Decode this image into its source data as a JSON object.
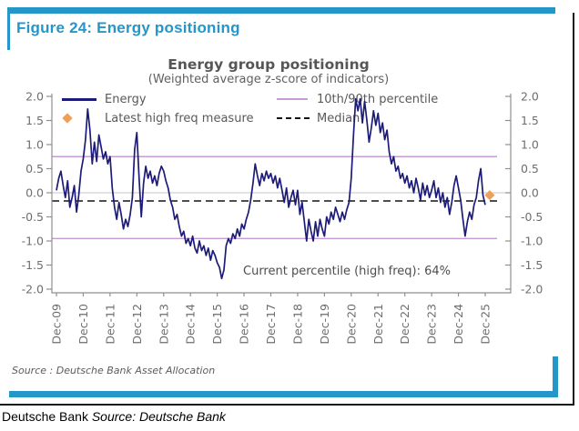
{
  "figure": {
    "label": "Figure 24: Energy positioning",
    "source_note": "Source : Deutsche Bank Asset Allocation"
  },
  "footer": {
    "brand": "Deutsche Bank",
    "source": "Source: Deutsche Bank"
  },
  "colors": {
    "accent_blue": "#2496c8",
    "frame_black": "#1a1a1a",
    "energy_line": "#1d1b78",
    "percentile_line": "#c79bd6",
    "median_line": "#141414",
    "marker_orange": "#eda05a",
    "title_gray": "#565656",
    "axis_gray": "#6e6e6e"
  },
  "chart_data": {
    "type": "line",
    "title": "Energy group positioning",
    "subtitle": "(Weighted average z-score of indicators)",
    "annotation": "Current percentile (high freq): 64%",
    "legend": [
      {
        "label": "Energy",
        "swatch": "line",
        "color": "#1d1b78"
      },
      {
        "label": "10th/90th percentile",
        "swatch": "line",
        "color": "#c79bd6"
      },
      {
        "label": "Latest high freq measure",
        "swatch": "diamond",
        "color": "#eda05a"
      },
      {
        "label": "Median",
        "swatch": "dashed",
        "color": "#141414"
      }
    ],
    "legend_position": "top",
    "grid": "zero-line-only",
    "ylim": [
      -2.0,
      2.0
    ],
    "y_tick_labels": [
      "2.0",
      "1.5",
      "1.0",
      "0.5",
      "0.0",
      "-0.5",
      "-1.0",
      "-1.5",
      "-2.0"
    ],
    "x_tick_labels": [
      "Dec-09",
      "Dec-10",
      "Dec-11",
      "Dec-12",
      "Dec-13",
      "Dec-14",
      "Dec-15",
      "Dec-16",
      "Dec-17",
      "Dec-18",
      "Dec-19",
      "Dec-20",
      "Dec-21",
      "Dec-22",
      "Dec-23",
      "Dec-24",
      "Dec-25"
    ],
    "reference_lines": {
      "upper_percentile": 0.75,
      "lower_percentile": -0.95,
      "median": -0.17
    },
    "latest_high_freq_marker": {
      "month": 194,
      "value": -0.05
    },
    "series": [
      {
        "name": "Energy",
        "x_unit": "months_from_Dec-09",
        "values": [
          0.05,
          0.3,
          0.45,
          0.15,
          -0.1,
          0.25,
          -0.3,
          -0.1,
          0.15,
          -0.4,
          -0.05,
          0.45,
          0.7,
          1.1,
          1.74,
          1.3,
          0.6,
          1.05,
          0.65,
          1.2,
          0.95,
          0.7,
          0.85,
          0.6,
          0.75,
          0.1,
          -0.3,
          -0.55,
          -0.2,
          -0.45,
          -0.75,
          -0.55,
          -0.7,
          -0.45,
          -0.1,
          0.9,
          1.25,
          0.3,
          -0.5,
          0.2,
          0.55,
          0.3,
          0.45,
          0.2,
          0.35,
          0.15,
          0.4,
          0.55,
          0.45,
          0.25,
          0.1,
          -0.15,
          -0.3,
          -0.55,
          -0.45,
          -0.7,
          -0.9,
          -0.8,
          -1.05,
          -0.95,
          -1.1,
          -0.9,
          -1.15,
          -1.25,
          -1.0,
          -1.2,
          -1.1,
          -1.3,
          -1.15,
          -1.4,
          -1.2,
          -1.3,
          -1.45,
          -1.55,
          -1.78,
          -1.6,
          -1.1,
          -0.95,
          -1.05,
          -0.85,
          -0.95,
          -0.75,
          -0.9,
          -0.65,
          -0.75,
          -0.55,
          -0.4,
          -0.15,
          0.2,
          0.6,
          0.35,
          0.15,
          0.4,
          0.25,
          0.45,
          0.3,
          0.4,
          0.2,
          0.35,
          0.1,
          0.3,
          0.05,
          -0.2,
          0.1,
          -0.3,
          -0.1,
          0.05,
          -0.25,
          0.05,
          -0.45,
          -0.2,
          -0.6,
          -1.0,
          -0.55,
          -0.8,
          -1.0,
          -0.6,
          -0.9,
          -0.55,
          -0.75,
          -0.9,
          -0.5,
          -0.65,
          -0.4,
          -0.55,
          -0.3,
          -0.45,
          -0.6,
          -0.4,
          -0.55,
          -0.35,
          -0.2,
          0.3,
          1.2,
          1.95,
          1.7,
          1.95,
          1.45,
          1.9,
          1.5,
          1.05,
          1.35,
          1.7,
          1.4,
          1.65,
          1.25,
          1.45,
          1.1,
          1.3,
          0.85,
          0.6,
          0.75,
          0.45,
          0.55,
          0.3,
          0.4,
          0.2,
          0.35,
          0.1,
          0.25,
          0.0,
          0.3,
          0.1,
          -0.15,
          0.2,
          -0.05,
          0.15,
          -0.1,
          0.05,
          0.25,
          -0.1,
          0.1,
          -0.2,
          0.0,
          -0.3,
          -0.1,
          -0.45,
          -0.2,
          0.15,
          0.35,
          0.1,
          -0.15,
          -0.55,
          -0.9,
          -0.6,
          -0.4,
          -0.55,
          -0.25,
          -0.1,
          0.25,
          0.5,
          -0.05,
          -0.25
        ]
      }
    ]
  }
}
